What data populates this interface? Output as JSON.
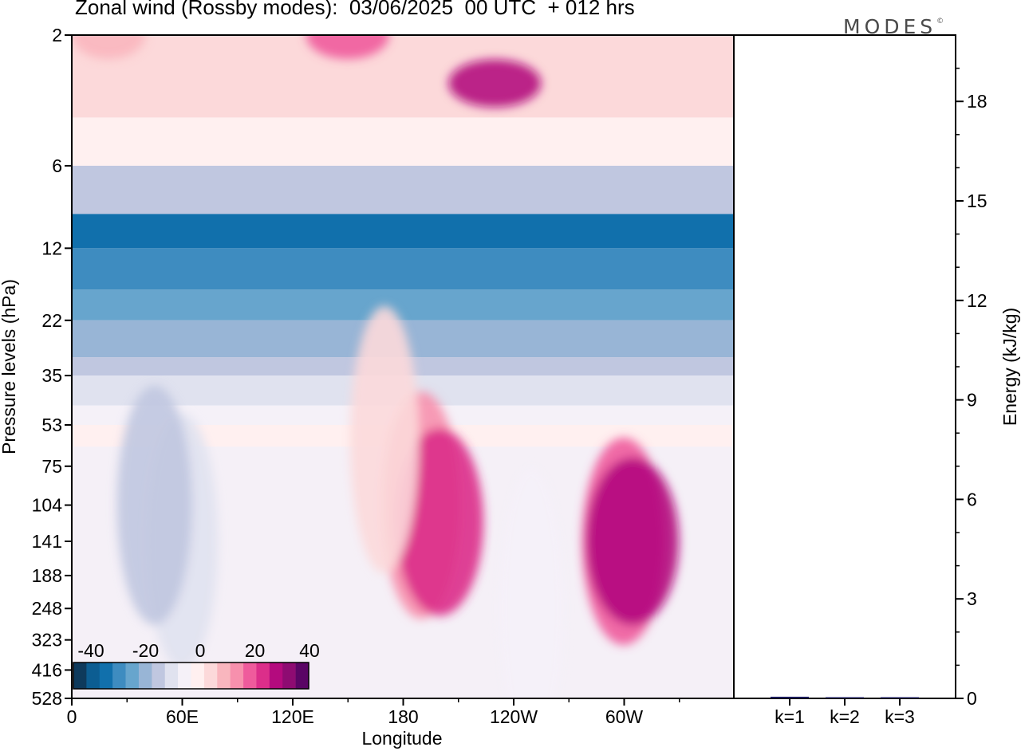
{
  "title": "Zonal wind (Rossby modes):  03/06/2025  00 UTC  + 012 hrs",
  "logo": {
    "text": "MODES",
    "mark": "©"
  },
  "chart_data": [
    {
      "type": "heatmap",
      "xlabel": "Longitude",
      "ylabel": "Pressure levels (hPa)",
      "x_ticks": [
        "0",
        "60E",
        "120E",
        "180",
        "120W",
        "60W"
      ],
      "y_ticks": [
        "2",
        "6",
        "12",
        "22",
        "35",
        "53",
        "75",
        "104",
        "141",
        "188",
        "248",
        "323",
        "416",
        "528"
      ],
      "colorbar": {
        "tick_labels": [
          "-40",
          "-20",
          "0",
          "20",
          "40"
        ],
        "colors": [
          "#0e3a5c",
          "#0c5d92",
          "#1170ac",
          "#3e8cc0",
          "#67a5cd",
          "#98b5d6",
          "#c0c7e0",
          "#e0e2ef",
          "#f5f1f8",
          "#fff0f0",
          "#fcd9da",
          "#f9b6be",
          "#f790ad",
          "#ef5b9c",
          "#dc2e8a",
          "#b40a7e",
          "#8e0b72",
          "#5a0565"
        ]
      },
      "bands": [
        {
          "level": "2",
          "u": 8
        },
        {
          "level": "4",
          "u": 3
        },
        {
          "level": "6",
          "u": -12
        },
        {
          "level": "9",
          "u": -32
        },
        {
          "level": "12",
          "u": -28
        },
        {
          "level": "17",
          "u": -24
        },
        {
          "level": "22",
          "u": -20
        },
        {
          "level": "30",
          "u": -12
        },
        {
          "level": "35",
          "u": -8
        },
        {
          "level": "45",
          "u": -2
        },
        {
          "level": "53",
          "u": 1
        }
      ],
      "blobs": [
        {
          "lon": 20,
          "level": "2",
          "u": 10
        },
        {
          "lon": 150,
          "level": "2",
          "u": 20
        },
        {
          "lon": 230,
          "level": "3",
          "u": 30
        },
        {
          "lon": 60,
          "level": "141",
          "u": -8
        },
        {
          "lon": 45,
          "level": "104",
          "u": -12
        },
        {
          "lon": 190,
          "level": "104",
          "u": 15
        },
        {
          "lon": 200,
          "level": "120",
          "u": 25
        },
        {
          "lon": 300,
          "level": "141",
          "u": 20
        },
        {
          "lon": 305,
          "level": "141",
          "u": 30
        },
        {
          "lon": 170,
          "level": "60",
          "u": 5
        },
        {
          "lon": 250,
          "level": "248",
          "u": -1
        }
      ]
    },
    {
      "type": "bar",
      "ylabel": "Energy (kJ/kg)",
      "categories": [
        "k=1",
        "k=2",
        "k=3"
      ],
      "values": [
        0.05,
        0.02,
        0.02
      ],
      "y_ticks": [
        "0",
        "3",
        "6",
        "9",
        "12",
        "15",
        "18"
      ],
      "ylim": [
        0,
        20
      ]
    }
  ]
}
